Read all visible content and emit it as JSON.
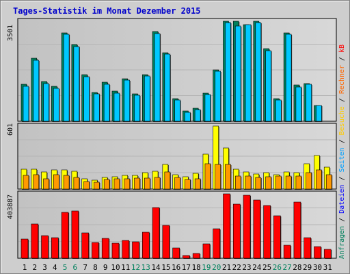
{
  "chart_data": {
    "type": "bar",
    "title": "Tages-Statistik im Monat Dezember 2015",
    "categories": [
      "1",
      "2",
      "3",
      "4",
      "5",
      "6",
      "7",
      "8",
      "9",
      "10",
      "11",
      "12",
      "13",
      "14",
      "15",
      "16",
      "17",
      "18",
      "19",
      "20",
      "21",
      "22",
      "23",
      "24",
      "25",
      "26",
      "27",
      "28",
      "29",
      "30",
      "31"
    ],
    "weekend_days": [
      "5",
      "6",
      "12",
      "13",
      "19",
      "20",
      "26",
      "27"
    ],
    "panels": [
      {
        "id": "top",
        "ymax": 3501,
        "ymax_label": "3501",
        "series": [
          {
            "name": "Anfragen",
            "color": "#00805c",
            "values": [
              1284,
              2215,
              1391,
              1213,
              3100,
              2683,
              1631,
              1010,
              1360,
              1050,
              1490,
              954,
              1640,
              3139,
              2409,
              784,
              359,
              448,
              981,
              1799,
              3501,
              3490,
              3380,
              3501,
              2537,
              796,
              3082,
              1270,
              1320,
              560,
              0
            ]
          },
          {
            "name": "Dateien",
            "color": "#00c8ff",
            "values": [
              1230,
              2130,
              1330,
              1160,
              3050,
              2610,
              1570,
              950,
              1300,
              990,
              1430,
              900,
              1580,
              3080,
              2340,
              740,
              320,
              410,
              930,
              1740,
              3460,
              3330,
              3380,
              3450,
              2480,
              750,
              3040,
              1210,
              1290,
              540,
              0
            ]
          }
        ]
      },
      {
        "id": "middle",
        "ymax": 601,
        "ymax_label": "601",
        "series": [
          {
            "name": "Besuche",
            "color": "#ffff00",
            "values": [
              188,
              191,
              165,
              185,
              185,
              168,
              95,
              85,
              108,
              120,
              128,
              132,
              158,
              170,
              236,
              135,
              117,
              152,
              335,
              601,
              390,
              192,
              164,
              144,
              156,
              137,
              165,
              160,
              240,
              318,
              209
            ]
          },
          {
            "name": "Seiten",
            "color": "#ff9900",
            "values": [
              131,
              140,
              100,
              135,
              130,
              112,
              72,
              66,
              91,
              95,
              98,
              105,
              104,
              110,
              162,
              113,
              92,
              100,
              244,
              233,
              236,
              125,
              122,
              112,
              120,
              124,
              122,
              125,
              160,
              184,
              134
            ]
          }
        ]
      },
      {
        "id": "bottom",
        "ymax": 403887,
        "ymax_label": "403887",
        "series": [
          {
            "name": "kB",
            "color": "#ff0000",
            "values": [
              120000,
              214000,
              142000,
              127000,
              290000,
              296000,
              160000,
              98000,
              123000,
              96000,
              113000,
              101000,
              164000,
              320000,
              208000,
              64000,
              18000,
              32000,
              92000,
              186000,
              403887,
              340000,
              395000,
              366000,
              330000,
              266000,
              82000,
              352000,
              130000,
              72000,
              58000
            ]
          }
        ]
      }
    ],
    "right_label": [
      {
        "text": "Anfragen",
        "color": "#00805c"
      },
      {
        "text": " / ",
        "color": "#000000"
      },
      {
        "text": "Dateien",
        "color": "#0000ff"
      },
      {
        "text": " / ",
        "color": "#000000"
      },
      {
        "text": "Seiten",
        "color": "#00a0ff"
      },
      {
        "text": " / ",
        "color": "#000000"
      },
      {
        "text": "Besuche",
        "color": "#ffcc00"
      },
      {
        "text": " / ",
        "color": "#000000"
      },
      {
        "text": "Rechner",
        "color": "#ff6600"
      },
      {
        "text": " / ",
        "color": "#000000"
      },
      {
        "text": "kB",
        "color": "#ff0000"
      }
    ],
    "weekday_color": "#000000",
    "weekend_color": "#00805c"
  }
}
